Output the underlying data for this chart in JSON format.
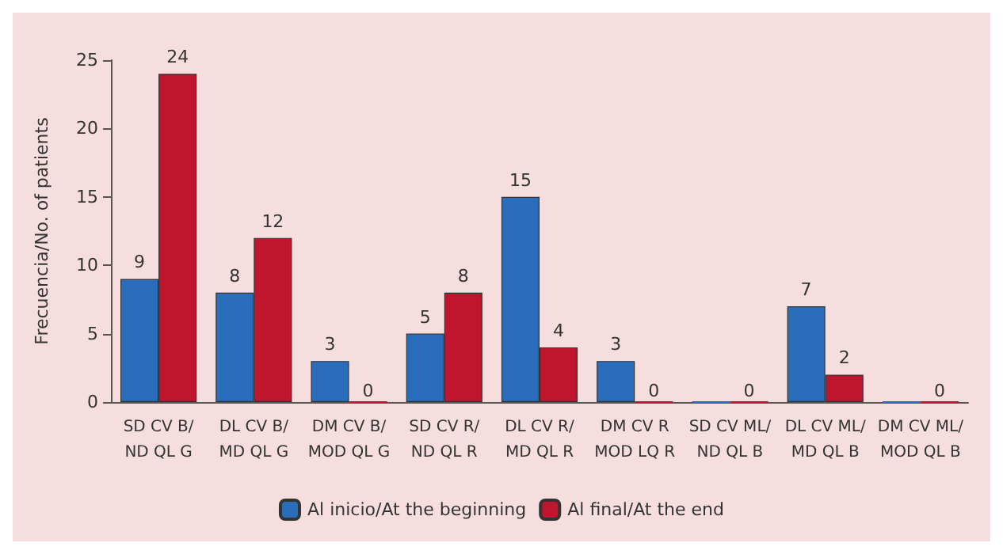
{
  "chart_data": {
    "type": "bar",
    "ylabel": "Frecuencia/No. of patients",
    "categories": [
      "SD CV B/\nND QL G",
      "DL CV B/\nMD QL G",
      "DM CV B/\nMOD QL G",
      "SD CV R/\nND QL R",
      "DL CV R/\nMD QL R",
      "DM CV R\nMOD LQ R",
      "SD CV ML/\nND QL B",
      "DL CV ML/\nMD QL B",
      "DM CV ML/\nMOD QL B"
    ],
    "series": [
      {
        "name": "Al inicio/At the beginning",
        "color": "#2a6ebb",
        "values": [
          9,
          8,
          3,
          5,
          15,
          3,
          0,
          7,
          0
        ],
        "value_labels": [
          "9",
          "8",
          "3",
          "5",
          "15",
          "3",
          null,
          "7",
          null
        ]
      },
      {
        "name": "Al final/At the end",
        "color": "#c0152f",
        "values": [
          24,
          12,
          0,
          8,
          4,
          0,
          0,
          2,
          0
        ],
        "value_labels": [
          "24",
          "12",
          "0",
          "8",
          "4",
          "0",
          "0",
          "2",
          "0"
        ]
      }
    ],
    "ylim": [
      0,
      25
    ],
    "yticks": [
      0,
      5,
      10,
      15,
      20,
      25
    ],
    "grid": false,
    "legend": "bottom"
  }
}
